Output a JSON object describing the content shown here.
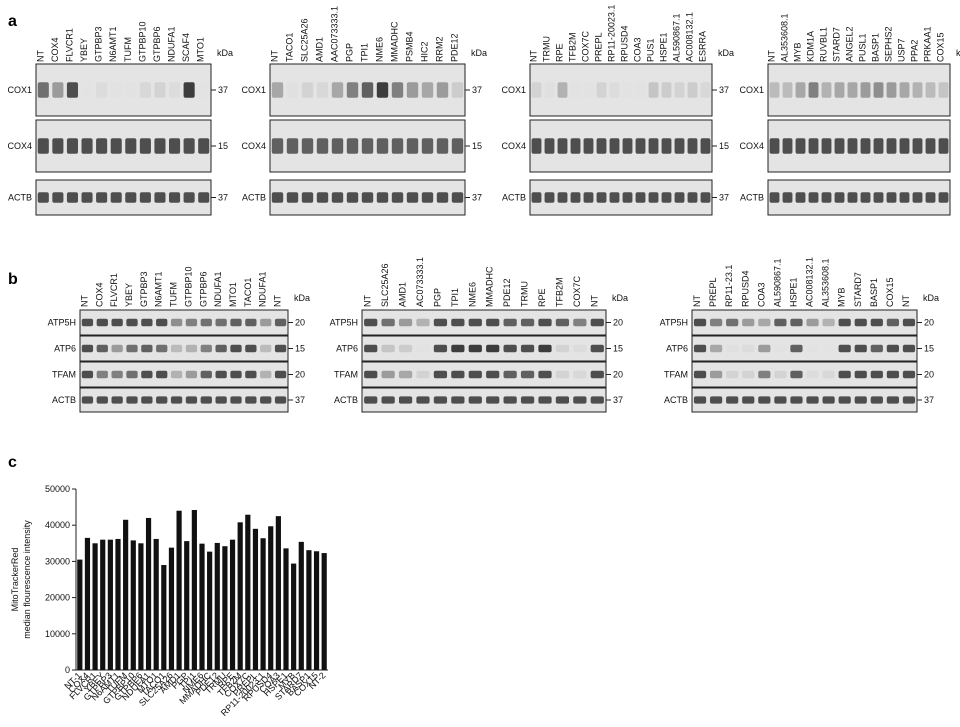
{
  "panels": {
    "a": "a",
    "b": "b",
    "c": "c"
  },
  "kda_label": "kDa",
  "panel_a": [
    {
      "lanes": [
        "NT",
        "COX4",
        "FLVCR1",
        "YBEY",
        "GTPBP3",
        "N6AMT1",
        "TUFM",
        "GTPBP10",
        "GTPBP6",
        "NDUFA1",
        "SCAF4",
        "MTO1"
      ],
      "rows": [
        {
          "label": "COX1",
          "marker": "37",
          "intensity": [
            0.75,
            0.6,
            0.85,
            0.05,
            0.2,
            0.1,
            0.1,
            0.25,
            0.3,
            0.2,
            0.9,
            0.05
          ]
        },
        {
          "label": "COX4",
          "marker": "15",
          "intensity": [
            0.85,
            0.85,
            0.85,
            0.85,
            0.85,
            0.85,
            0.85,
            0.85,
            0.85,
            0.85,
            0.85,
            0.85
          ]
        },
        {
          "label": "ACTB",
          "marker": "37",
          "intensity": [
            0.85,
            0.85,
            0.85,
            0.85,
            0.85,
            0.85,
            0.85,
            0.85,
            0.85,
            0.85,
            0.85,
            0.85
          ]
        }
      ]
    },
    {
      "lanes": [
        "NT",
        "TACO1",
        "SLC25A26",
        "AMD1",
        "AAC073333.1",
        "PGP",
        "TPI1",
        "NME6",
        "MMADHC",
        "PSMB4",
        "HIC2",
        "RRM2",
        "PDE12"
      ],
      "rows": [
        {
          "label": "COX1",
          "marker": "37",
          "intensity": [
            0.55,
            0.15,
            0.3,
            0.25,
            0.55,
            0.7,
            0.8,
            0.9,
            0.7,
            0.6,
            0.55,
            0.6,
            0.35
          ]
        },
        {
          "label": "COX4",
          "marker": "15",
          "intensity": [
            0.8,
            0.8,
            0.8,
            0.8,
            0.8,
            0.8,
            0.8,
            0.8,
            0.8,
            0.8,
            0.8,
            0.8,
            0.8
          ]
        },
        {
          "label": "ACTB",
          "marker": "37",
          "intensity": [
            0.85,
            0.85,
            0.85,
            0.85,
            0.85,
            0.85,
            0.85,
            0.85,
            0.85,
            0.85,
            0.85,
            0.85,
            0.85
          ]
        }
      ]
    },
    {
      "lanes": [
        "NT",
        "TRMU",
        "RPE",
        "TFB2M",
        "COX7C",
        "PREPL",
        "RP11-20023.1",
        "RPUSD4",
        "COA3",
        "PUS1",
        "HSPE1",
        "AL590867.1",
        "AC008132.1",
        "ESRRA"
      ],
      "rows": [
        {
          "label": "COX1",
          "marker": "37",
          "intensity": [
            0.3,
            0.15,
            0.5,
            0.1,
            0.1,
            0.3,
            0.2,
            0.1,
            0.1,
            0.4,
            0.35,
            0.3,
            0.35,
            0.25
          ]
        },
        {
          "label": "COX4",
          "marker": "15",
          "intensity": [
            0.85,
            0.85,
            0.85,
            0.85,
            0.85,
            0.85,
            0.85,
            0.85,
            0.85,
            0.85,
            0.85,
            0.85,
            0.85,
            0.85
          ]
        },
        {
          "label": "ACTB",
          "marker": "37",
          "intensity": [
            0.85,
            0.85,
            0.85,
            0.85,
            0.85,
            0.85,
            0.85,
            0.85,
            0.85,
            0.85,
            0.85,
            0.85,
            0.85,
            0.85
          ]
        }
      ]
    },
    {
      "lanes": [
        "NT",
        "AL353608.1",
        "MYB",
        "KDM1A",
        "RUVBL1",
        "STARD7",
        "ANGEL2",
        "PUSL1",
        "BASP1",
        "SEPHS2",
        "USP7",
        "PPA2",
        "PRKAA1",
        "COX15"
      ],
      "rows": [
        {
          "label": "COX1",
          "marker": "",
          "intensity": [
            0.45,
            0.45,
            0.55,
            0.7,
            0.5,
            0.55,
            0.55,
            0.6,
            0.65,
            0.6,
            0.55,
            0.5,
            0.45,
            0.4
          ]
        },
        {
          "label": "COX4",
          "marker": "",
          "intensity": [
            0.85,
            0.85,
            0.85,
            0.85,
            0.85,
            0.85,
            0.85,
            0.85,
            0.85,
            0.85,
            0.85,
            0.85,
            0.85,
            0.85
          ]
        },
        {
          "label": "ACTB",
          "marker": "",
          "intensity": [
            0.85,
            0.85,
            0.85,
            0.85,
            0.85,
            0.85,
            0.85,
            0.85,
            0.85,
            0.85,
            0.85,
            0.85,
            0.85,
            0.85
          ]
        }
      ]
    }
  ],
  "panel_b": [
    {
      "lanes": [
        "NT",
        "COX4",
        "FLVCR1",
        "YBEY",
        "GTPBP3",
        "N6AMT1",
        "TUFM",
        "GTPBP10",
        "GTPBP6",
        "NDUFA1",
        "MTO1",
        "TACO1",
        "NDUFA1",
        "NT"
      ],
      "rows": [
        {
          "label": "ATP5H",
          "marker": "20",
          "intensity": [
            0.85,
            0.85,
            0.85,
            0.85,
            0.85,
            0.85,
            0.65,
            0.7,
            0.75,
            0.75,
            0.8,
            0.8,
            0.6,
            0.8
          ]
        },
        {
          "label": "ATP6",
          "marker": "15",
          "intensity": [
            0.85,
            0.8,
            0.6,
            0.75,
            0.8,
            0.75,
            0.45,
            0.5,
            0.7,
            0.8,
            0.85,
            0.85,
            0.45,
            0.85
          ]
        },
        {
          "label": "TFAM",
          "marker": "20",
          "intensity": [
            0.85,
            0.7,
            0.7,
            0.75,
            0.85,
            0.85,
            0.5,
            0.6,
            0.8,
            0.85,
            0.85,
            0.85,
            0.5,
            0.85
          ]
        },
        {
          "label": "ACTB",
          "marker": "37",
          "intensity": [
            0.85,
            0.85,
            0.85,
            0.85,
            0.85,
            0.85,
            0.85,
            0.85,
            0.85,
            0.85,
            0.85,
            0.85,
            0.85,
            0.85
          ]
        }
      ]
    },
    {
      "lanes": [
        "NT",
        "SLC25A26",
        "AMD1",
        "AC073333.1",
        "PGP",
        "TPI1",
        "NME6",
        "MMADHC",
        "PDE12",
        "TRMU",
        "RPE",
        "TFB2M",
        "COX7C",
        "NT"
      ],
      "rows": [
        {
          "label": "ATP5H",
          "marker": "20",
          "intensity": [
            0.85,
            0.75,
            0.6,
            0.5,
            0.85,
            0.85,
            0.85,
            0.85,
            0.8,
            0.8,
            0.85,
            0.8,
            0.7,
            0.85
          ]
        },
        {
          "label": "ATP6",
          "marker": "15",
          "intensity": [
            0.85,
            0.4,
            0.35,
            0.1,
            0.85,
            0.9,
            0.9,
            0.9,
            0.85,
            0.85,
            0.9,
            0.3,
            0.2,
            0.85
          ]
        },
        {
          "label": "TFAM",
          "marker": "20",
          "intensity": [
            0.85,
            0.6,
            0.55,
            0.3,
            0.85,
            0.85,
            0.85,
            0.85,
            0.8,
            0.8,
            0.85,
            0.3,
            0.25,
            0.85
          ]
        },
        {
          "label": "ACTB",
          "marker": "37",
          "intensity": [
            0.85,
            0.85,
            0.85,
            0.85,
            0.85,
            0.85,
            0.85,
            0.85,
            0.85,
            0.85,
            0.85,
            0.85,
            0.85,
            0.85
          ]
        }
      ]
    },
    {
      "lanes": [
        "NT",
        "PREPL",
        "RP11-23.1",
        "RPUSD4",
        "COA3",
        "AL590867.1",
        "HSPE1",
        "AC008132.1",
        "AL353608.1",
        "MYB",
        "STARD7",
        "BASP1",
        "COX15",
        "NT"
      ],
      "rows": [
        {
          "label": "ATP5H",
          "marker": "20",
          "intensity": [
            0.85,
            0.7,
            0.75,
            0.6,
            0.55,
            0.8,
            0.8,
            0.6,
            0.5,
            0.85,
            0.85,
            0.85,
            0.8,
            0.85
          ]
        },
        {
          "label": "ATP6",
          "marker": "15",
          "intensity": [
            0.85,
            0.55,
            0.15,
            0.2,
            0.6,
            0.1,
            0.8,
            0.1,
            0.05,
            0.85,
            0.85,
            0.8,
            0.85,
            0.85
          ]
        },
        {
          "label": "TFAM",
          "marker": "20",
          "intensity": [
            0.85,
            0.6,
            0.3,
            0.3,
            0.7,
            0.3,
            0.8,
            0.2,
            0.25,
            0.85,
            0.85,
            0.85,
            0.85,
            0.85
          ]
        },
        {
          "label": "ACTB",
          "marker": "37",
          "intensity": [
            0.85,
            0.85,
            0.85,
            0.85,
            0.85,
            0.85,
            0.85,
            0.85,
            0.85,
            0.85,
            0.85,
            0.85,
            0.85,
            0.85
          ]
        }
      ]
    }
  ],
  "chart_data": {
    "type": "bar",
    "ylabel": "MitoTrackerRed\nmedian flourescence intensity",
    "ylim": [
      0,
      50000
    ],
    "yticks": [
      0,
      10000,
      20000,
      30000,
      40000,
      50000
    ],
    "categories": [
      "NT-1",
      "COX4",
      "FLVCR1",
      "YBEY",
      "GTPBP3",
      "N6AMT1",
      "TUFM",
      "GTPBP10",
      "GTPBP6",
      "NDUFA1",
      "MTO1",
      "TACO1",
      "SLC25A26",
      "AMD1",
      "PGP",
      "TPI1",
      "NME6",
      "MMADHC",
      "PDE12",
      "TRMU",
      "RPE",
      "TFB2M",
      "COX7C",
      "PREPL",
      "RP11-20023.1",
      "RPUSD4",
      "COA3",
      "HSPE1",
      "MYB",
      "STARD7",
      "BASP1",
      "COX15",
      "NT-2"
    ],
    "values": [
      30500,
      36500,
      35000,
      36000,
      36000,
      36200,
      41500,
      35800,
      35000,
      42000,
      36200,
      29000,
      33800,
      44000,
      35600,
      44200,
      34900,
      32700,
      35100,
      34200,
      36000,
      40800,
      42900,
      39000,
      36400,
      39700,
      42500,
      33600,
      29400,
      35400,
      33100,
      32800,
      32300
    ],
    "color": "#111111",
    "grid": false
  }
}
